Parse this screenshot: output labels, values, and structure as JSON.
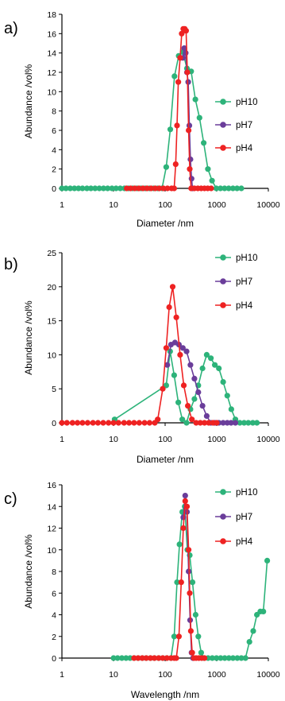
{
  "colors": {
    "pH10": "#2db37a",
    "pH7": "#6a3d9a",
    "pH4": "#ee2222"
  },
  "chart_data": [
    {
      "type": "scatter",
      "panel_label": "a)",
      "xlabel": "Diameter /nm",
      "ylabel": "Abundance /vol%",
      "x_scale": "log",
      "xlim": [
        1,
        10000
      ],
      "ylim": [
        0,
        18
      ],
      "x_ticks": [
        "1",
        "10",
        "100",
        "1000",
        "10000"
      ],
      "y_ticks": [
        "0",
        "2",
        "4",
        "6",
        "8",
        "10",
        "12",
        "14",
        "16",
        "18"
      ],
      "y_tick_values": [
        0,
        2,
        4,
        6,
        8,
        10,
        12,
        14,
        16,
        18
      ],
      "legend_position": "right",
      "series": [
        {
          "name": "pH10",
          "color": "#2db37a",
          "points": [
            [
              1,
              0
            ],
            [
              1.2,
              0
            ],
            [
              1.45,
              0
            ],
            [
              1.75,
              0
            ],
            [
              2.1,
              0
            ],
            [
              2.5,
              0
            ],
            [
              3.05,
              0
            ],
            [
              3.65,
              0
            ],
            [
              4.4,
              0
            ],
            [
              5.3,
              0
            ],
            [
              6.4,
              0
            ],
            [
              7.7,
              0
            ],
            [
              9.3,
              0
            ],
            [
              11.2,
              0
            ],
            [
              13.5,
              0
            ],
            [
              16.3,
              0
            ],
            [
              19.6,
              0
            ],
            [
              23.6,
              0
            ],
            [
              28.5,
              0
            ],
            [
              34.3,
              0
            ],
            [
              41.3,
              0
            ],
            [
              49.8,
              0
            ],
            [
              60,
              0
            ],
            [
              72,
              0
            ],
            [
              87,
              0
            ],
            [
              105,
              2.2
            ],
            [
              126,
              6.1
            ],
            [
              152,
              11.6
            ],
            [
              183,
              13.7
            ],
            [
              220,
              14.1
            ],
            [
              265,
              12.4
            ],
            [
              320,
              12.1
            ],
            [
              385,
              9.2
            ],
            [
              464,
              7.3
            ],
            [
              560,
              4.7
            ],
            [
              675,
              2.0
            ],
            [
              810,
              0.8
            ],
            [
              980,
              0
            ],
            [
              1180,
              0
            ],
            [
              1420,
              0
            ],
            [
              1710,
              0
            ],
            [
              2060,
              0
            ],
            [
              2480,
              0
            ],
            [
              3000,
              0
            ]
          ]
        },
        {
          "name": "pH7",
          "color": "#6a3d9a",
          "points": [
            [
              220,
              13.5
            ],
            [
              235,
              14.5
            ],
            [
              250,
              14.0
            ],
            [
              265,
              12.0
            ],
            [
              280,
              11.0
            ],
            [
              295,
              6.5
            ],
            [
              310,
              3.0
            ],
            [
              325,
              1.0
            ],
            [
              340,
              0
            ]
          ]
        },
        {
          "name": "pH4",
          "color": "#ee2222",
          "points": [
            [
              18,
              0
            ],
            [
              21.5,
              0
            ],
            [
              25.8,
              0
            ],
            [
              31,
              0
            ],
            [
              37.2,
              0
            ],
            [
              44.6,
              0
            ],
            [
              53.5,
              0
            ],
            [
              64.2,
              0
            ],
            [
              77,
              0
            ],
            [
              92.4,
              0
            ],
            [
              111,
              0
            ],
            [
              133,
              0
            ],
            [
              150,
              0
            ],
            [
              160,
              2.5
            ],
            [
              170,
              6.5
            ],
            [
              180,
              11.0
            ],
            [
              195,
              13.5
            ],
            [
              210,
              16.0
            ],
            [
              225,
              16.5
            ],
            [
              240,
              16.5
            ],
            [
              255,
              16.3
            ],
            [
              270,
              12.0
            ],
            [
              285,
              6.0
            ],
            [
              300,
              2.0
            ],
            [
              320,
              0
            ],
            [
              370,
              0
            ],
            [
              430,
              0
            ],
            [
              500,
              0
            ],
            [
              580,
              0
            ],
            [
              670,
              0
            ],
            [
              780,
              0
            ]
          ]
        }
      ]
    },
    {
      "type": "scatter",
      "panel_label": "b)",
      "xlabel": "Diameter /nm",
      "ylabel": "Abundance /vol%",
      "x_scale": "log",
      "xlim": [
        1,
        10000
      ],
      "ylim": [
        0,
        25
      ],
      "x_ticks": [
        "1",
        "10",
        "100",
        "1000",
        "10000"
      ],
      "y_ticks": [
        "0",
        "5",
        "10",
        "15",
        "20",
        "25"
      ],
      "y_tick_values": [
        0,
        5,
        10,
        15,
        20,
        25
      ],
      "legend_position": "top-right",
      "series": [
        {
          "name": "pH10",
          "color": "#2db37a",
          "points": [
            [
              10.5,
              0.5
            ],
            [
              105,
              5.5
            ],
            [
              125,
              10.5
            ],
            [
              150,
              7.0
            ],
            [
              180,
              3.0
            ],
            [
              215,
              0.5
            ],
            [
              260,
              0
            ],
            [
              310,
              2.0
            ],
            [
              370,
              3.5
            ],
            [
              440,
              5.5
            ],
            [
              530,
              8.0
            ],
            [
              640,
              10.0
            ],
            [
              770,
              9.5
            ],
            [
              920,
              8.5
            ],
            [
              1100,
              8.0
            ],
            [
              1330,
              6.0
            ],
            [
              1600,
              4.0
            ],
            [
              1920,
              2.0
            ],
            [
              2300,
              0.5
            ],
            [
              2800,
              0
            ],
            [
              3400,
              0
            ],
            [
              4100,
              0
            ],
            [
              5000,
              0
            ],
            [
              6000,
              0
            ]
          ]
        },
        {
          "name": "pH7",
          "color": "#6a3d9a",
          "points": [
            [
              110,
              8.5
            ],
            [
              130,
              11.5
            ],
            [
              155,
              11.8
            ],
            [
              185,
              11.5
            ],
            [
              220,
              11.0
            ],
            [
              260,
              10.5
            ],
            [
              310,
              8.5
            ],
            [
              370,
              6.5
            ],
            [
              440,
              4.5
            ],
            [
              530,
              2.5
            ],
            [
              640,
              1.0
            ],
            [
              770,
              0
            ],
            [
              920,
              0
            ],
            [
              1100,
              0
            ],
            [
              1330,
              0
            ],
            [
              1600,
              0
            ],
            [
              1900,
              0
            ],
            [
              2300,
              0
            ]
          ]
        },
        {
          "name": "pH4",
          "color": "#ee2222",
          "points": [
            [
              1,
              0
            ],
            [
              1.25,
              0
            ],
            [
              1.6,
              0
            ],
            [
              2,
              0
            ],
            [
              2.5,
              0
            ],
            [
              3.15,
              0
            ],
            [
              4,
              0
            ],
            [
              5,
              0
            ],
            [
              6.3,
              0
            ],
            [
              8,
              0
            ],
            [
              10,
              0
            ],
            [
              12.5,
              0
            ],
            [
              16,
              0
            ],
            [
              20,
              0
            ],
            [
              25,
              0
            ],
            [
              31.5,
              0
            ],
            [
              40,
              0
            ],
            [
              50,
              0
            ],
            [
              63,
              0
            ],
            [
              72,
              0.5
            ],
            [
              90,
              5.0
            ],
            [
              105,
              11.0
            ],
            [
              120,
              17.0
            ],
            [
              140,
              20.0
            ],
            [
              165,
              15.5
            ],
            [
              195,
              10.0
            ],
            [
              230,
              5.5
            ],
            [
              275,
              2.5
            ],
            [
              330,
              0.5
            ],
            [
              400,
              0
            ],
            [
              480,
              0
            ],
            [
              580,
              0
            ],
            [
              700,
              0
            ],
            [
              850,
              0
            ],
            [
              1000,
              0
            ]
          ]
        }
      ]
    },
    {
      "type": "scatter",
      "panel_label": "c)",
      "xlabel": "Wavelength /nm",
      "ylabel": "Abundance /vol%",
      "x_scale": "log",
      "xlim": [
        1,
        10000
      ],
      "ylim": [
        0,
        16
      ],
      "x_ticks": [
        "1",
        "10",
        "100",
        "1000",
        "10000"
      ],
      "y_ticks": [
        "0",
        "2",
        "4",
        "6",
        "8",
        "10",
        "12",
        "14",
        "16"
      ],
      "y_tick_values": [
        0,
        2,
        4,
        6,
        8,
        10,
        12,
        14,
        16
      ],
      "legend_position": "right",
      "series": [
        {
          "name": "pH10",
          "color": "#2db37a",
          "points": [
            [
              10,
              0
            ],
            [
              12,
              0
            ],
            [
              14.5,
              0
            ],
            [
              17.5,
              0
            ],
            [
              21,
              0
            ],
            [
              25,
              0
            ],
            [
              30,
              0
            ],
            [
              36,
              0
            ],
            [
              43,
              0
            ],
            [
              52,
              0
            ],
            [
              62,
              0
            ],
            [
              75,
              0
            ],
            [
              90,
              0
            ],
            [
              108,
              0
            ],
            [
              130,
              0
            ],
            [
              150,
              2.0
            ],
            [
              170,
              7.0
            ],
            [
              190,
              10.5
            ],
            [
              215,
              13.5
            ],
            [
              240,
              14.0
            ],
            [
              270,
              10.0
            ],
            [
              300,
              9.5
            ],
            [
              340,
              7.0
            ],
            [
              390,
              4.0
            ],
            [
              440,
              2.0
            ],
            [
              500,
              0.5
            ],
            [
              570,
              0
            ],
            [
              680,
              0
            ],
            [
              820,
              0
            ],
            [
              990,
              0
            ],
            [
              1190,
              0
            ],
            [
              1430,
              0
            ],
            [
              1720,
              0
            ],
            [
              2070,
              0
            ],
            [
              2500,
              0
            ],
            [
              3000,
              0
            ],
            [
              3600,
              0
            ],
            [
              4300,
              1.5
            ],
            [
              5100,
              2.5
            ],
            [
              6000,
              4.0
            ],
            [
              7000,
              4.3
            ],
            [
              8000,
              4.3
            ],
            [
              9500,
              9.0
            ]
          ]
        },
        {
          "name": "pH7",
          "color": "#6a3d9a",
          "points": [
            [
              225,
              13.0
            ],
            [
              245,
              15.0
            ],
            [
              265,
              13.5
            ],
            [
              285,
              8.0
            ],
            [
              305,
              3.5
            ],
            [
              325,
              0.5
            ],
            [
              345,
              0
            ]
          ]
        },
        {
          "name": "pH4",
          "color": "#ee2222",
          "points": [
            [
              25,
              0
            ],
            [
              30,
              0
            ],
            [
              36,
              0
            ],
            [
              43,
              0
            ],
            [
              52,
              0
            ],
            [
              62,
              0
            ],
            [
              75,
              0
            ],
            [
              90,
              0
            ],
            [
              108,
              0
            ],
            [
              130,
              0
            ],
            [
              150,
              0
            ],
            [
              165,
              0
            ],
            [
              185,
              2.0
            ],
            [
              205,
              7.0
            ],
            [
              225,
              12.0
            ],
            [
              245,
              14.5
            ],
            [
              265,
              14.0
            ],
            [
              285,
              10.0
            ],
            [
              300,
              6.0
            ],
            [
              315,
              2.5
            ],
            [
              335,
              0.5
            ],
            [
              360,
              0
            ],
            [
              400,
              0
            ],
            [
              450,
              0
            ],
            [
              510,
              0
            ],
            [
              580,
              0
            ]
          ]
        }
      ]
    }
  ]
}
